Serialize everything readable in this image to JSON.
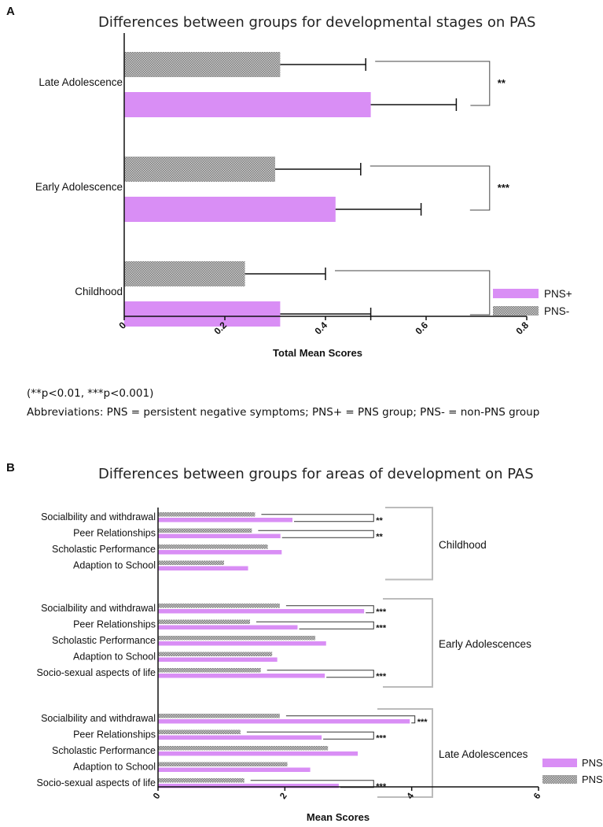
{
  "panel_a": {
    "letter": "A",
    "title": "Differences between groups for developmental stages on PAS",
    "notes": [
      "(**p<0.01, ***p<0.001)",
      "Abbreviations: PNS = persistent negative symptoms; PNS+ = PNS group; PNS- = non-PNS group"
    ]
  },
  "panel_b": {
    "letter": "B",
    "title": "Differences between groups for areas of development on PAS"
  },
  "colors": {
    "pns_plus": "#d98ef5",
    "pns_minus": "#a8a8a8",
    "bracket_gray": "#bbbbbb"
  },
  "chart_data": [
    {
      "type": "bar",
      "orientation": "horizontal",
      "title": "Differences between groups for developmental stages on PAS",
      "xlabel": "Total Mean Scores",
      "xlim": [
        0,
        0.8
      ],
      "xticks": [
        "0",
        "0.2",
        "0.4",
        "0.6",
        "0.8"
      ],
      "legend_position": "bottom-right",
      "categories": [
        "Late Adolescence",
        "Early Adolescence",
        "Childhood"
      ],
      "series": [
        {
          "name": "PNS-",
          "values": [
            0.31,
            0.3,
            0.24
          ],
          "error": [
            0.17,
            0.17,
            0.16
          ]
        },
        {
          "name": "PNS+",
          "values": [
            0.49,
            0.42,
            0.31
          ],
          "error": [
            0.17,
            0.17,
            0.18
          ]
        }
      ],
      "significance": [
        "**",
        "***",
        "***"
      ]
    },
    {
      "type": "bar",
      "orientation": "horizontal",
      "title": "Differences between groups for areas of development on PAS",
      "xlabel": "Mean Scores",
      "xlim": [
        0,
        6
      ],
      "xticks": [
        "0",
        "2",
        "4",
        "6"
      ],
      "legend_position": "bottom-right",
      "groups": [
        {
          "name": "Childhood",
          "items": [
            {
              "label": "Socialbility and withdrawal",
              "pns_minus": 1.53,
              "pns_plus": 2.12,
              "sig": "**"
            },
            {
              "label": "Peer Relationships",
              "pns_minus": 1.48,
              "pns_plus": 1.93,
              "sig": "**"
            },
            {
              "label": "Scholastic Performance",
              "pns_minus": 1.73,
              "pns_plus": 1.95,
              "sig": ""
            },
            {
              "label": "Adaption to School",
              "pns_minus": 1.04,
              "pns_plus": 1.42,
              "sig": ""
            }
          ]
        },
        {
          "name": "Early Adolescences",
          "items": [
            {
              "label": "Socialbility and withdrawal",
              "pns_minus": 1.92,
              "pns_plus": 3.25,
              "sig": "***"
            },
            {
              "label": "Peer Relationships",
              "pns_minus": 1.45,
              "pns_plus": 2.2,
              "sig": "***"
            },
            {
              "label": "Scholastic Performance",
              "pns_minus": 2.48,
              "pns_plus": 2.65,
              "sig": ""
            },
            {
              "label": "Adaption to School",
              "pns_minus": 1.8,
              "pns_plus": 1.88,
              "sig": ""
            },
            {
              "label": "Socio-sexual aspects of life",
              "pns_minus": 1.62,
              "pns_plus": 2.63,
              "sig": "***"
            }
          ]
        },
        {
          "name": "Late Adolescences",
          "items": [
            {
              "label": "Socialbility and withdrawal",
              "pns_minus": 1.92,
              "pns_plus": 3.97,
              "sig": "***"
            },
            {
              "label": "Peer Relationships",
              "pns_minus": 1.3,
              "pns_plus": 2.58,
              "sig": "***"
            },
            {
              "label": "Scholastic Performance",
              "pns_minus": 2.68,
              "pns_plus": 3.15,
              "sig": ""
            },
            {
              "label": "Adaption to School",
              "pns_minus": 2.04,
              "pns_plus": 2.4,
              "sig": ""
            },
            {
              "label": "Socio-sexual aspects of life",
              "pns_minus": 1.36,
              "pns_plus": 2.85,
              "sig": "***"
            }
          ]
        }
      ],
      "series_names": [
        "PNS+",
        "PNS-"
      ]
    }
  ]
}
